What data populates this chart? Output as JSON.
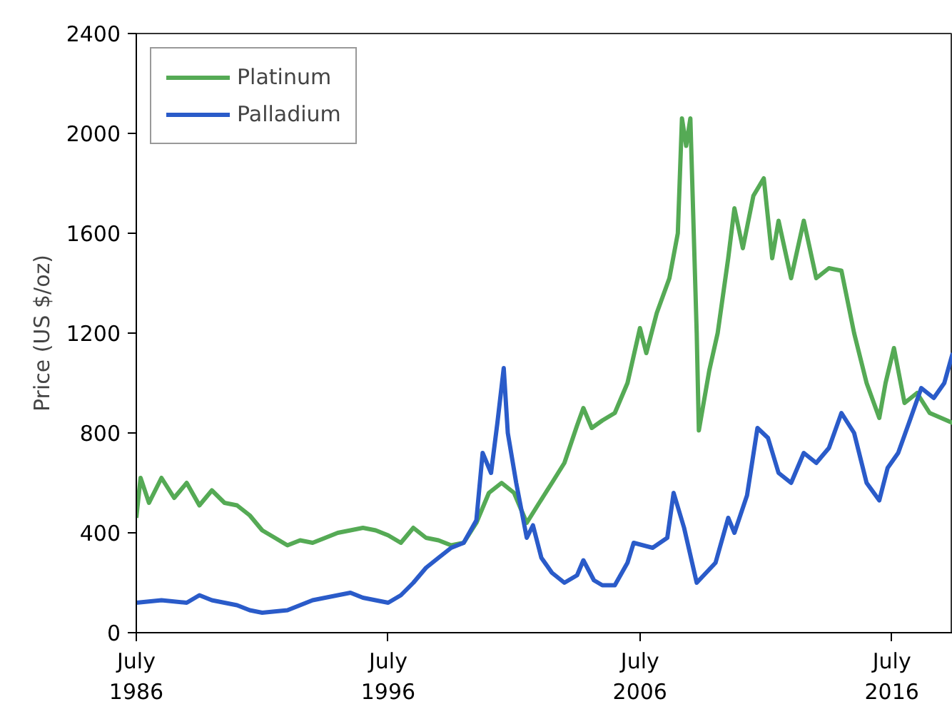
{
  "chart_data": {
    "type": "line",
    "ylabel": "Price (US $/oz)",
    "xlim": [
      "1986-07",
      "2018-12"
    ],
    "ylim": [
      0,
      2400
    ],
    "xticks": [
      {
        "value": "1986-07",
        "label": "July\n1986"
      },
      {
        "value": "1996-07",
        "label": "July\n1996"
      },
      {
        "value": "2006-07",
        "label": "July\n2006"
      },
      {
        "value": "2016-07",
        "label": "July\n2016"
      }
    ],
    "yticks": [
      0,
      400,
      800,
      1200,
      1600,
      2000,
      2400
    ],
    "grid": false,
    "legend": "top left",
    "line_style": "solid",
    "marker": "none",
    "series": [
      {
        "name": "Platinum",
        "color": "#55aa55",
        "x": [
          "1986-07",
          "1986-09",
          "1987-01",
          "1987-07",
          "1988-01",
          "1988-07",
          "1989-01",
          "1989-07",
          "1990-01",
          "1990-07",
          "1991-01",
          "1991-07",
          "1992-01",
          "1992-07",
          "1993-01",
          "1993-07",
          "1994-01",
          "1994-07",
          "1995-01",
          "1995-07",
          "1996-01",
          "1996-07",
          "1997-01",
          "1997-07",
          "1998-01",
          "1998-07",
          "1999-01",
          "1999-07",
          "2000-01",
          "2000-07",
          "2001-01",
          "2001-07",
          "2002-01",
          "2002-07",
          "2003-01",
          "2003-07",
          "2004-01",
          "2004-04",
          "2004-08",
          "2005-01",
          "2005-07",
          "2006-01",
          "2006-07",
          "2006-10",
          "2007-03",
          "2007-09",
          "2008-01",
          "2008-03",
          "2008-05",
          "2008-07",
          "2008-10",
          "2008-11",
          "2009-04",
          "2009-08",
          "2010-01",
          "2010-04",
          "2010-08",
          "2011-01",
          "2011-06",
          "2011-10",
          "2012-01",
          "2012-07",
          "2013-01",
          "2013-07",
          "2014-01",
          "2014-07",
          "2015-01",
          "2015-07",
          "2016-01",
          "2016-04",
          "2016-08",
          "2017-01",
          "2017-07",
          "2018-01",
          "2018-12"
        ],
        "values": [
          460,
          620,
          520,
          620,
          540,
          600,
          510,
          570,
          520,
          510,
          470,
          410,
          380,
          350,
          370,
          360,
          380,
          400,
          410,
          420,
          410,
          390,
          360,
          420,
          380,
          370,
          350,
          360,
          440,
          560,
          600,
          560,
          440,
          520,
          600,
          680,
          830,
          900,
          820,
          850,
          880,
          1000,
          1220,
          1120,
          1280,
          1420,
          1600,
          2060,
          1950,
          2060,
          1200,
          810,
          1050,
          1200,
          1500,
          1700,
          1540,
          1750,
          1820,
          1500,
          1650,
          1420,
          1650,
          1420,
          1460,
          1450,
          1200,
          1000,
          860,
          1000,
          1140,
          920,
          960,
          880,
          840
        ]
      },
      {
        "name": "Palladium",
        "color": "#2a5bc9",
        "x": [
          "1986-07",
          "1987-07",
          "1988-07",
          "1989-01",
          "1989-07",
          "1990-07",
          "1991-01",
          "1991-07",
          "1992-07",
          "1993-07",
          "1994-07",
          "1995-01",
          "1995-07",
          "1996-07",
          "1997-01",
          "1997-07",
          "1998-01",
          "1998-07",
          "1999-01",
          "1999-07",
          "2000-01",
          "2000-04",
          "2000-08",
          "2000-11",
          "2001-02",
          "2001-04",
          "2001-08",
          "2002-01",
          "2002-04",
          "2002-08",
          "2003-01",
          "2003-07",
          "2004-01",
          "2004-04",
          "2004-09",
          "2005-01",
          "2005-07",
          "2006-01",
          "2006-04",
          "2007-01",
          "2007-08",
          "2007-11",
          "2008-04",
          "2008-10",
          "2009-07",
          "2010-01",
          "2010-04",
          "2010-10",
          "2011-03",
          "2011-08",
          "2012-01",
          "2012-07",
          "2013-01",
          "2013-07",
          "2014-01",
          "2014-07",
          "2015-01",
          "2015-07",
          "2016-01",
          "2016-05",
          "2016-10",
          "2017-04",
          "2017-09",
          "2018-03",
          "2018-08",
          "2018-12"
        ],
        "values": [
          120,
          130,
          120,
          150,
          130,
          110,
          90,
          80,
          90,
          130,
          150,
          160,
          140,
          120,
          150,
          200,
          260,
          300,
          340,
          360,
          450,
          720,
          640,
          840,
          1060,
          800,
          600,
          380,
          430,
          300,
          240,
          200,
          230,
          290,
          210,
          190,
          190,
          280,
          360,
          340,
          380,
          560,
          420,
          200,
          280,
          460,
          400,
          550,
          820,
          780,
          640,
          600,
          720,
          680,
          740,
          880,
          800,
          600,
          530,
          660,
          720,
          860,
          980,
          940,
          1000,
          1120
        ]
      }
    ]
  }
}
